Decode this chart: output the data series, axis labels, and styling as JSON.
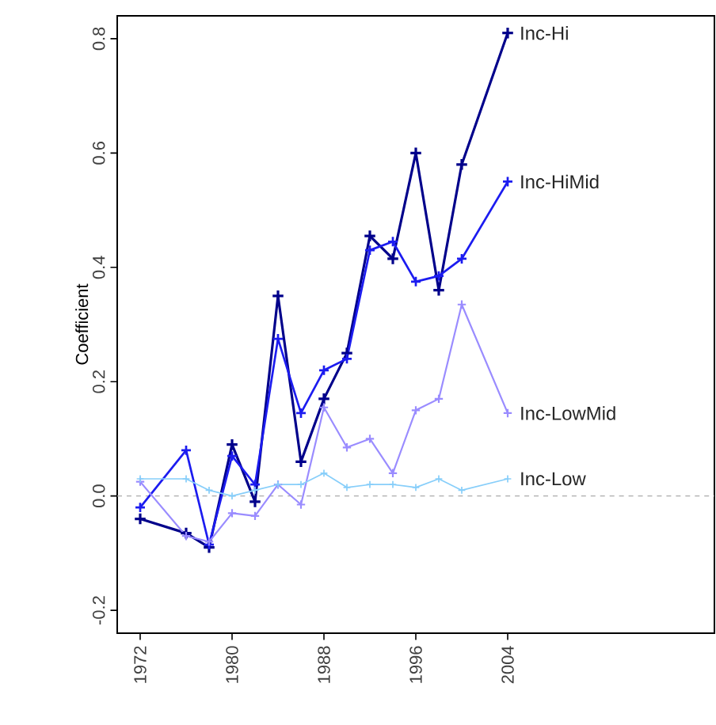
{
  "chart_data": {
    "type": "line",
    "ylabel": "Coefficient",
    "x": [
      1972,
      1976,
      1978,
      1980,
      1982,
      1984,
      1986,
      1988,
      1990,
      1992,
      1994,
      1996,
      1998,
      2000,
      2004
    ],
    "series": [
      {
        "name": "Inc-Hi",
        "color": "#00008b",
        "values": [
          -0.04,
          -0.065,
          -0.09,
          0.09,
          -0.01,
          0.35,
          0.06,
          0.17,
          0.25,
          0.455,
          0.415,
          0.6,
          0.36,
          0.58,
          0.81
        ]
      },
      {
        "name": "Inc-HiMid",
        "color": "#1c1cf0",
        "values": [
          -0.02,
          0.08,
          -0.085,
          0.07,
          0.02,
          0.275,
          0.145,
          0.22,
          0.24,
          0.43,
          0.445,
          0.375,
          0.385,
          0.415,
          0.55
        ]
      },
      {
        "name": "Inc-LowMid",
        "color": "#9a8cff",
        "values": [
          0.025,
          -0.07,
          -0.08,
          -0.03,
          -0.035,
          0.02,
          -0.015,
          0.155,
          0.085,
          0.1,
          0.04,
          0.15,
          0.17,
          0.335,
          0.145
        ]
      },
      {
        "name": "Inc-Low",
        "color": "#87cefa",
        "values": [
          0.03,
          0.03,
          0.01,
          0.0,
          0.01,
          0.02,
          0.02,
          0.04,
          0.015,
          0.02,
          0.02,
          0.015,
          0.03,
          0.01,
          0.03
        ]
      }
    ],
    "xlim": [
      1970,
      2022
    ],
    "ylim": [
      -0.24,
      0.84
    ],
    "xticks": [
      1972,
      1980,
      1988,
      1996,
      2004
    ],
    "yticks": [
      {
        "value": -0.2,
        "label": "-0.2"
      },
      {
        "value": 0,
        "label": "0.0"
      },
      {
        "value": 0.2,
        "label": "0.2"
      },
      {
        "value": 0.4,
        "label": "0.4"
      },
      {
        "value": 0.6,
        "label": "0.6"
      },
      {
        "value": 0.8,
        "label": "0.8"
      }
    ],
    "ref_lines": [
      {
        "axis": "y",
        "value": 0,
        "color": "#aaaaaa",
        "line_style": "dashed"
      }
    ],
    "grid": false,
    "legend": false,
    "marker": "cross",
    "line_style": "solid"
  }
}
